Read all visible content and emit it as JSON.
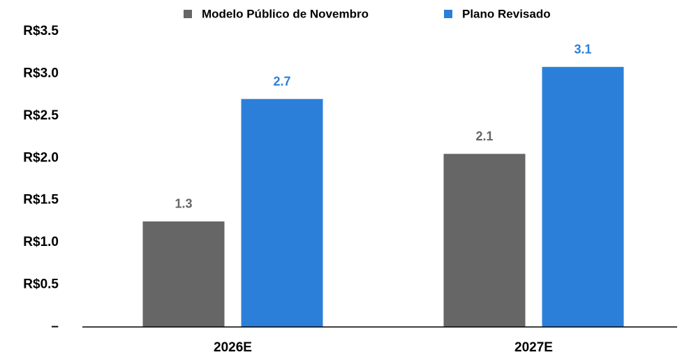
{
  "chart_data": {
    "type": "bar",
    "categories": [
      "2026E",
      "2027E"
    ],
    "series": [
      {
        "name": "Modelo Público de Novembro",
        "color": "#666666",
        "values": [
          1.25,
          2.05
        ],
        "value_labels": [
          "1.3",
          "2.1"
        ]
      },
      {
        "name": "Plano Revisado",
        "color": "#2b7fd9",
        "values": [
          2.7,
          3.08
        ],
        "value_labels": [
          "2.7",
          "3.1"
        ]
      }
    ],
    "ylim": [
      0,
      3.5
    ],
    "yticks": [
      {
        "value": 0,
        "label": "–"
      },
      {
        "value": 0.5,
        "label": "R$0.5"
      },
      {
        "value": 1.0,
        "label": "R$1.0"
      },
      {
        "value": 1.5,
        "label": "R$1.5"
      },
      {
        "value": 2.0,
        "label": "R$2.0"
      },
      {
        "value": 2.5,
        "label": "R$2.5"
      },
      {
        "value": 3.0,
        "label": "R$3.0"
      },
      {
        "value": 3.5,
        "label": "R$3.5"
      }
    ],
    "grid": false,
    "legend": "top"
  }
}
